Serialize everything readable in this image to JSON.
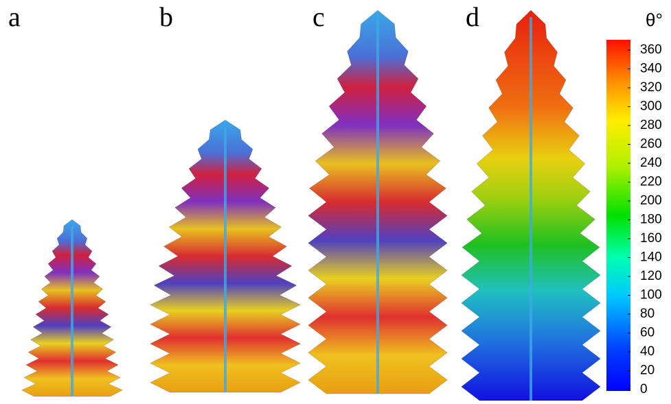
{
  "panels": [
    {
      "label": "a"
    },
    {
      "label": "b"
    },
    {
      "label": "c"
    },
    {
      "label": "d"
    }
  ],
  "colorbar": {
    "label": "θ°",
    "lim": [
      0,
      360
    ],
    "ticks": [
      0,
      20,
      40,
      60,
      80,
      100,
      120,
      140,
      160,
      180,
      200,
      220,
      240,
      260,
      280,
      300,
      320,
      340,
      360
    ]
  }
}
